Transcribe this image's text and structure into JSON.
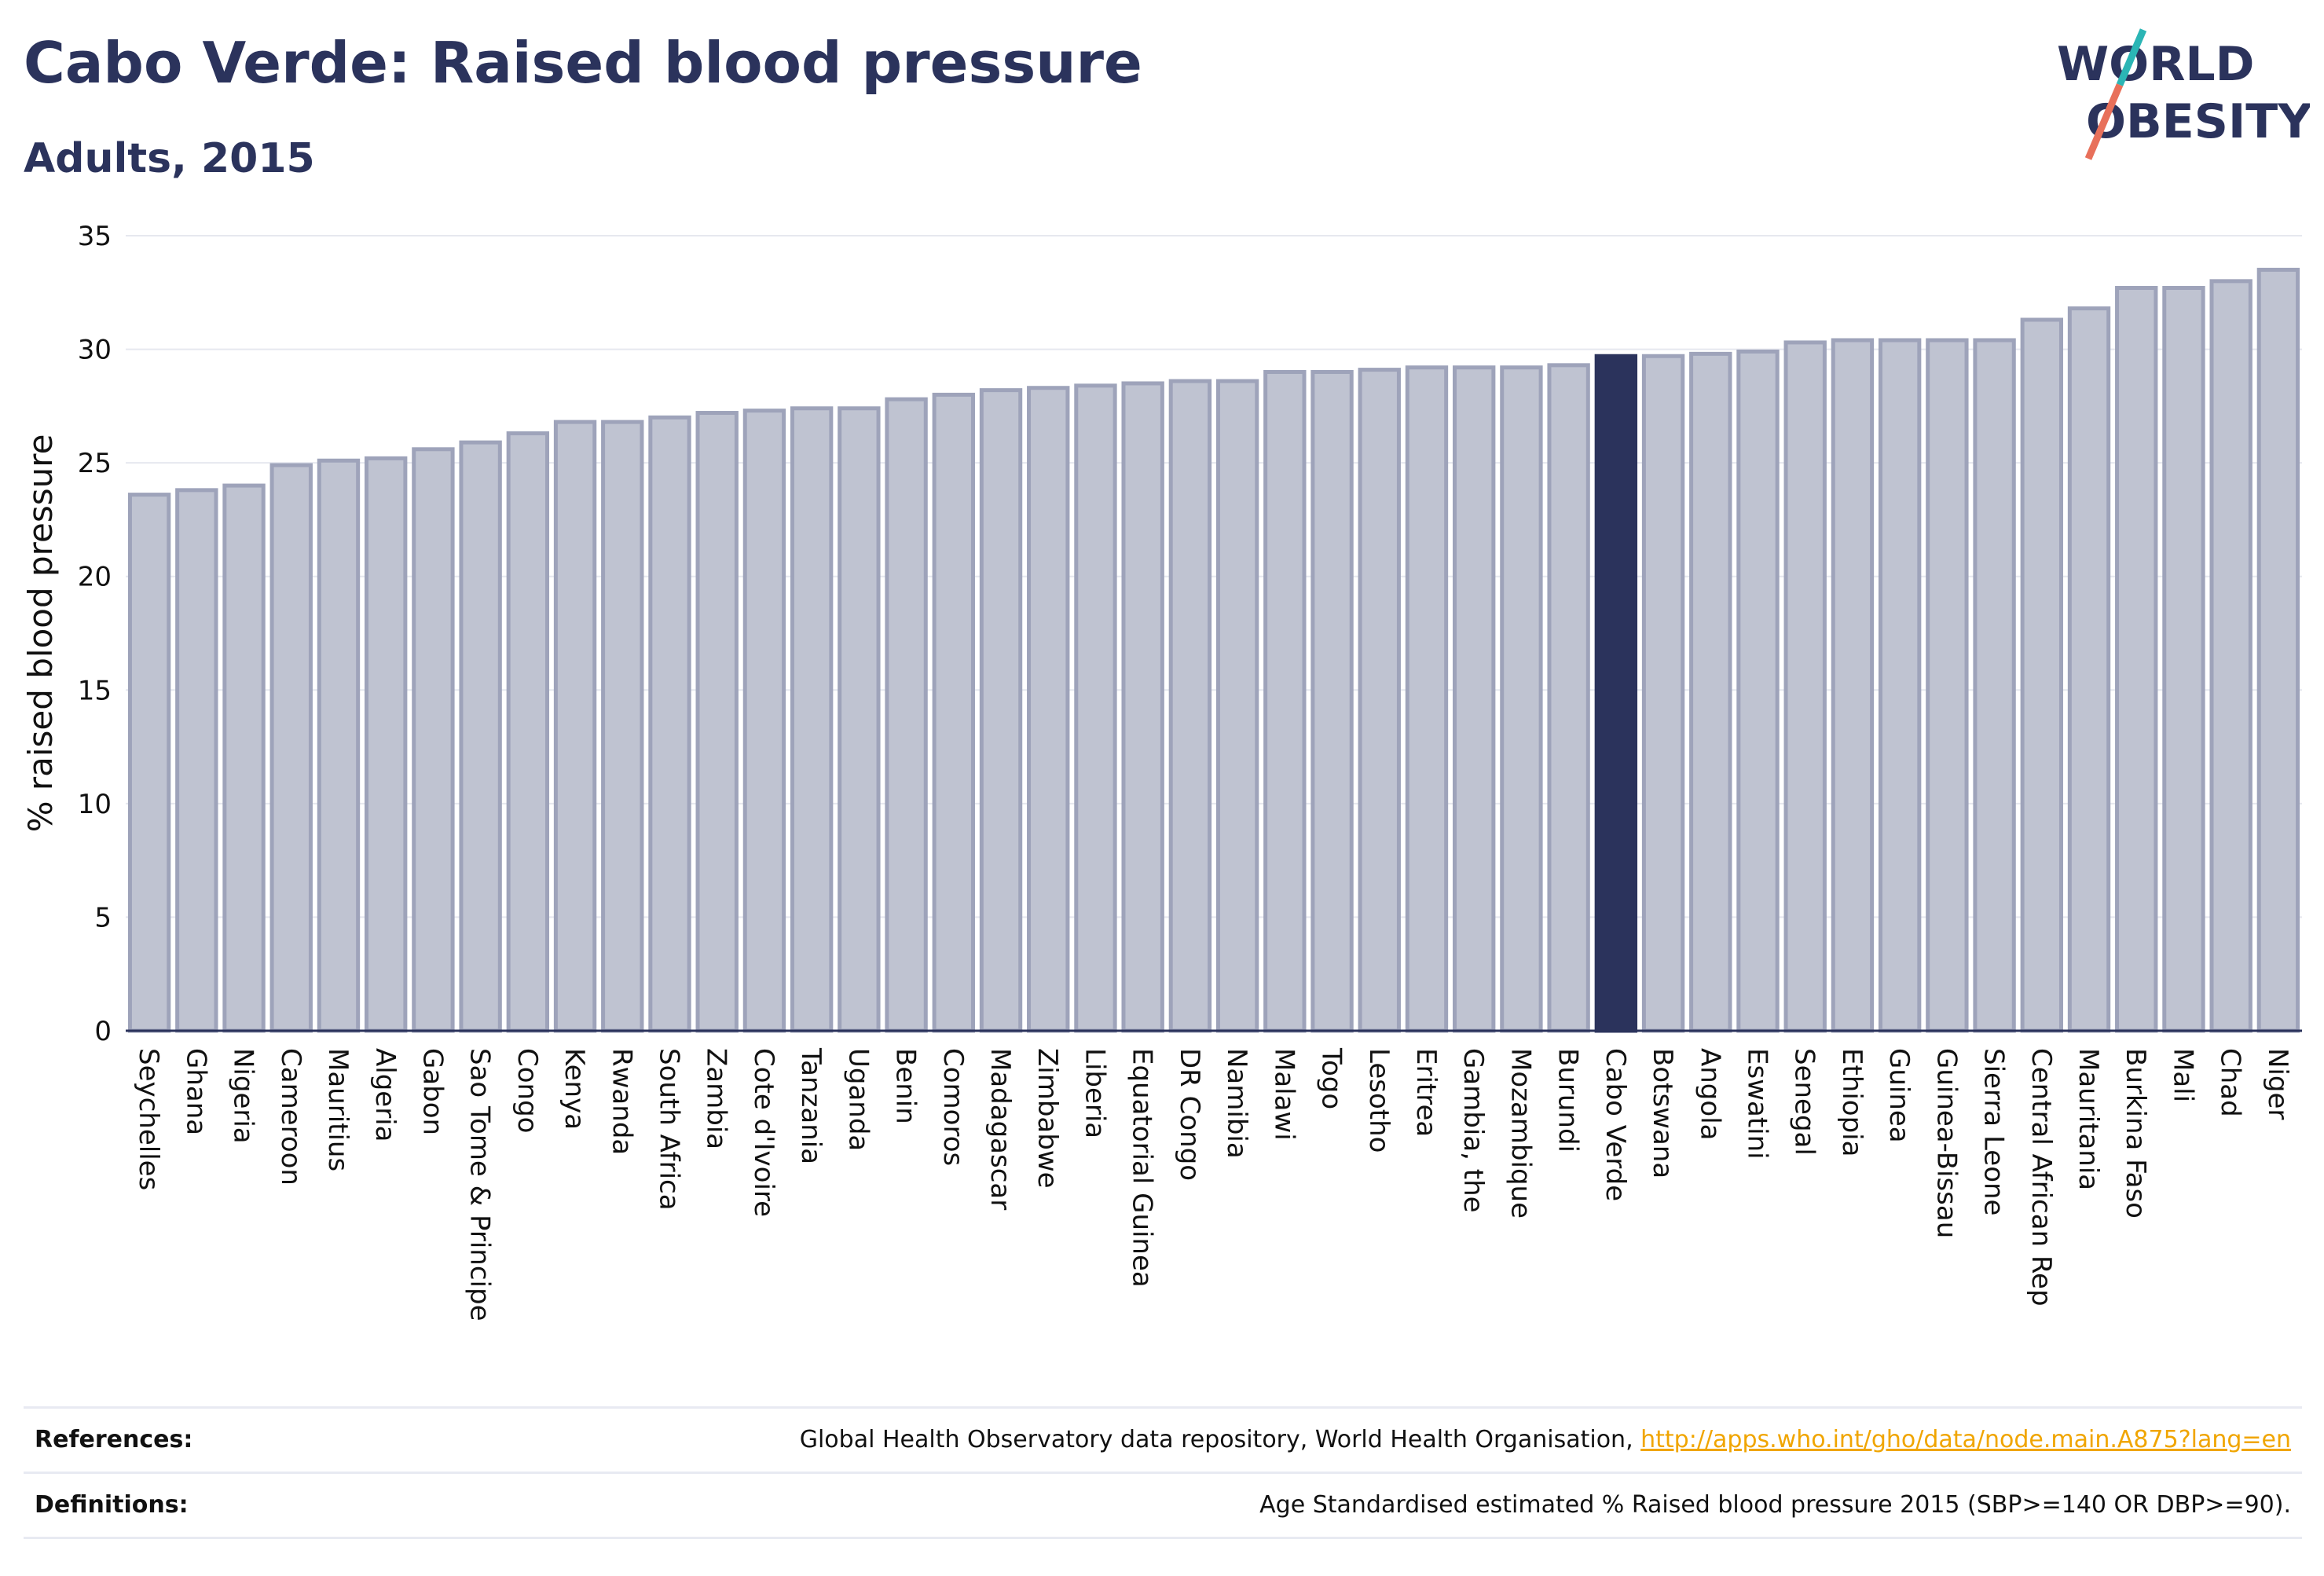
{
  "header": {
    "title": "Cabo Verde: Raised blood pressure",
    "subtitle": "Adults, 2015"
  },
  "logo": {
    "line1": "WORLD",
    "line2": "OBESITY"
  },
  "footer": {
    "references_label": "References:",
    "references_text": "Global Health Observatory data repository, World Health Organisation, ",
    "references_link": "http://apps.who.int/gho/data/node.main.A875?lang=en",
    "definitions_label": "Definitions:",
    "definitions_text": "Age Standardised estimated % Raised blood pressure 2015 (SBP>=140 OR DBP>=90)."
  },
  "colors": {
    "bar_fill": "#bfc3d1",
    "bar_stroke": "#9ea3ba",
    "highlight": "#2b335c",
    "grid": "#e6e8ef",
    "accent_red": "#e8705a",
    "accent_teal": "#2bb5b5"
  },
  "chart_data": {
    "type": "bar",
    "title": "Cabo Verde: Raised blood pressure",
    "subtitle": "Adults, 2015",
    "xlabel": "",
    "ylabel": "% raised blood pressure",
    "ylim": [
      0,
      35
    ],
    "yticks": [
      0,
      5,
      10,
      15,
      20,
      25,
      30,
      35
    ],
    "grid": true,
    "highlight": "Cabo Verde",
    "categories": [
      "Seychelles",
      "Ghana",
      "Nigeria",
      "Cameroon",
      "Mauritius",
      "Algeria",
      "Gabon",
      "Sao Tome & Principe",
      "Congo",
      "Kenya",
      "Rwanda",
      "South Africa",
      "Zambia",
      "Cote d'Ivoire",
      "Tanzania",
      "Uganda",
      "Benin",
      "Comoros",
      "Madagascar",
      "Zimbabwe",
      "Liberia",
      "Equatorial Guinea",
      "DR Congo",
      "Namibia",
      "Malawi",
      "Togo",
      "Lesotho",
      "Eritrea",
      "Gambia, the",
      "Mozambique",
      "Burundi",
      "Cabo Verde",
      "Botswana",
      "Angola",
      "Eswatini",
      "Senegal",
      "Ethiopia",
      "Guinea",
      "Guinea-Bissau",
      "Sierra Leone",
      "Central African Rep",
      "Mauritania",
      "Burkina Faso",
      "Mali",
      "Chad",
      "Niger"
    ],
    "values": [
      23.6,
      23.8,
      24.0,
      24.9,
      25.1,
      25.2,
      25.6,
      25.9,
      26.3,
      26.8,
      26.8,
      27.0,
      27.2,
      27.3,
      27.4,
      27.4,
      27.8,
      28.0,
      28.2,
      28.3,
      28.4,
      28.5,
      28.6,
      28.6,
      29.0,
      29.0,
      29.1,
      29.2,
      29.2,
      29.2,
      29.3,
      29.7,
      29.7,
      29.8,
      29.9,
      30.3,
      30.4,
      30.4,
      30.4,
      30.4,
      31.3,
      31.8,
      32.7,
      32.7,
      33.0,
      33.5
    ]
  }
}
